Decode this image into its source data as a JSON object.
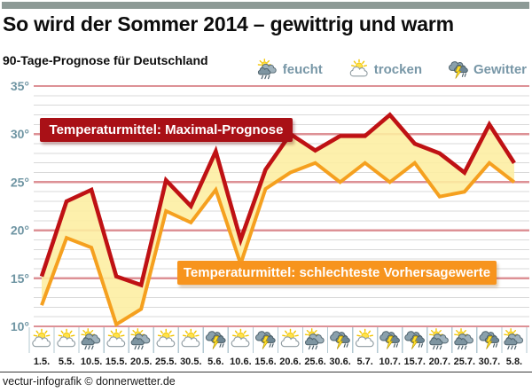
{
  "header": {
    "title": "So wird der Sommer 2014 – gewittrig und warm",
    "subtitle": "90-Tage-Prognose für Deutschland"
  },
  "legend": {
    "items": [
      {
        "icon": "feucht-icon",
        "label": "feucht"
      },
      {
        "icon": "trocken-icon",
        "label": "trocken"
      },
      {
        "icon": "gewitter-icon",
        "label": "Gewitter"
      }
    ]
  },
  "annotations": {
    "max_label": "Temperaturmittel: Maximal-Prognose",
    "min_label": "Temperaturmittel: schlechteste Vorhersagewerte"
  },
  "chart_data": {
    "type": "line",
    "subtype": "range-band-with-two-lines",
    "x_labels": [
      "1.5.",
      "5.5.",
      "10.5.",
      "15.5.",
      "20.5.",
      "25.5.",
      "30.5.",
      "5.6.",
      "10.6.",
      "15.6.",
      "20.6.",
      "25.6.",
      "30.6.",
      "5.7.",
      "10.7.",
      "15.7.",
      "20.7.",
      "25.7.",
      "30.7.",
      "5.8."
    ],
    "series": [
      {
        "name": "Temperaturmittel: Maximal-Prognose",
        "color": "#bf1114",
        "values": [
          15.2,
          23.0,
          24.2,
          15.2,
          14.3,
          25.2,
          22.5,
          28.2,
          19.0,
          26.3,
          30.0,
          28.3,
          29.8,
          29.8,
          32.0,
          29.0,
          28.0,
          26.0,
          31.0,
          27.0
        ]
      },
      {
        "name": "Temperaturmittel: schlechteste Vorhersagewerte",
        "color": "#f5a01f",
        "values": [
          12.2,
          19.2,
          18.2,
          10.2,
          11.8,
          22.0,
          20.8,
          24.2,
          16.5,
          24.3,
          26.0,
          27.0,
          25.0,
          27.0,
          25.0,
          27.0,
          23.5,
          24.0,
          27.0,
          25.0
        ]
      }
    ],
    "fill_between_color": "#fdeea0",
    "icons": [
      "trocken",
      "trocken",
      "feucht",
      "trocken",
      "feucht",
      "trocken",
      "trocken",
      "gewitter",
      "trocken",
      "gewitter",
      "trocken",
      "feucht",
      "gewitter",
      "trocken",
      "gewitter",
      "gewitter",
      "feucht",
      "feucht",
      "gewitter",
      "feucht"
    ],
    "ylim": [
      10,
      35
    ],
    "ytick_step": 5,
    "ytick_suffix": "°",
    "minor_grid_step": 1,
    "grid": true,
    "legend_position": "top-right",
    "colors": {
      "major_grid": "#dd9196",
      "minor_grid": "#d9d9d9",
      "axis_label": "#6f95a3",
      "icon_cell_divider": "#b3c8d2"
    }
  },
  "footer": {
    "credit": "vectur-infografik © donnerwetter.de"
  }
}
